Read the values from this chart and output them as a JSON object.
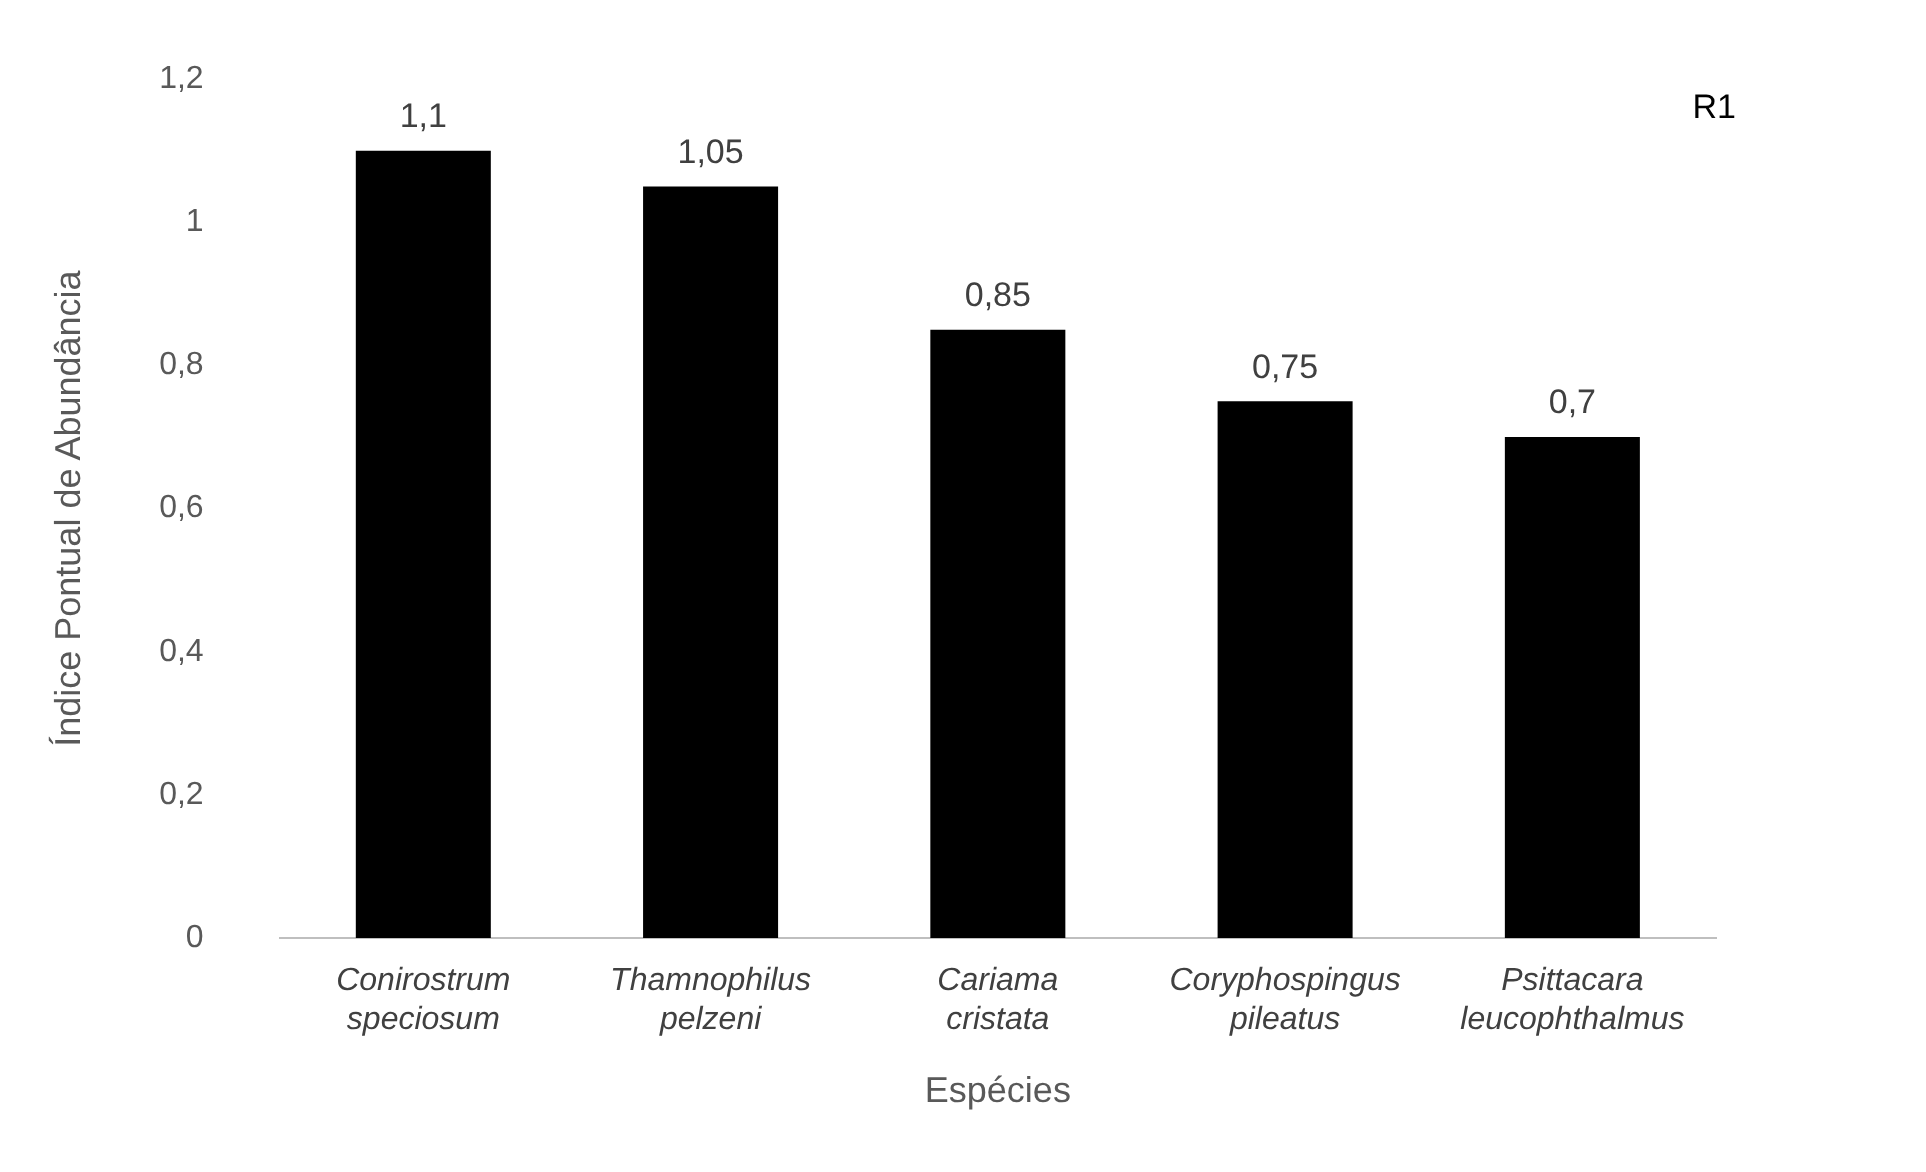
{
  "chart_data": {
    "type": "bar",
    "xlabel": "Espécies",
    "ylabel": "Índice Pontual de Abundância",
    "categories": [
      "Conirostrum speciosum",
      "Thamnophilus pelzeni",
      "Cariama cristata",
      "Coryphospingus pileatus",
      "Psittacara leucophthalmus"
    ],
    "values": [
      1.1,
      1.05,
      0.85,
      0.75,
      0.7
    ],
    "color": "#000000",
    "value_labels": [
      "1,1",
      "1,05",
      "0,85",
      "0,75",
      "0,7"
    ],
    "ylim": [
      0,
      1.2
    ],
    "yticks": [
      {
        "value": 0,
        "label": "0"
      },
      {
        "value": 0.2,
        "label": "0,2"
      },
      {
        "value": 0.4,
        "label": "0,4"
      },
      {
        "value": 0.6,
        "label": "0,6"
      },
      {
        "value": 0.8,
        "label": "0,8"
      },
      {
        "value": 1,
        "label": "1"
      },
      {
        "value": 1.2,
        "label": "1,2"
      }
    ],
    "annotations": [
      "R1"
    ],
    "grid": false,
    "legend": false
  }
}
